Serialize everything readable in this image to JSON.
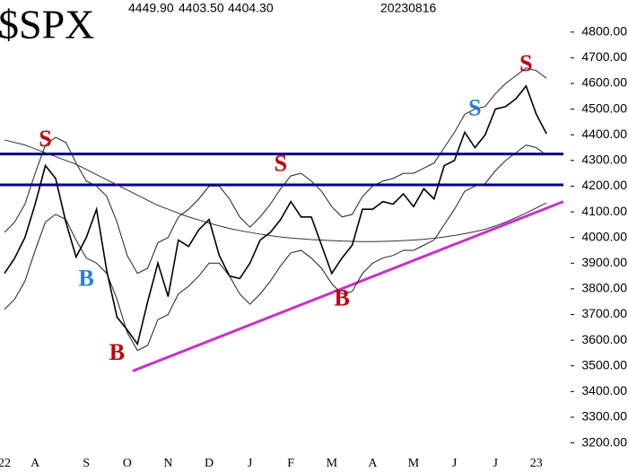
{
  "chart_data": {
    "type": "line",
    "title": "$SPX",
    "header": [
      "4449.90",
      "4403.50",
      "4404.30",
      "20230816"
    ],
    "categories": [
      "22",
      null,
      null,
      "A",
      null,
      null,
      null,
      null,
      "S",
      null,
      null,
      null,
      "O",
      null,
      null,
      null,
      "N",
      null,
      null,
      null,
      "D",
      null,
      null,
      null,
      "J",
      null,
      null,
      null,
      "F",
      null,
      null,
      null,
      "M",
      null,
      null,
      null,
      "A",
      null,
      null,
      null,
      "M",
      null,
      null,
      null,
      "J",
      null,
      null,
      null,
      "J",
      null,
      null,
      null,
      "23",
      null
    ],
    "series": [
      {
        "name": "price",
        "color": "#000000",
        "width": 1.6,
        "values": [
          3860,
          3920,
          4000,
          4130,
          4280,
          4230,
          4060,
          3924,
          4000,
          4110,
          3870,
          3690,
          3640,
          3585,
          3750,
          3900,
          3770,
          3990,
          3965,
          4030,
          4070,
          3930,
          3850,
          3840,
          3900,
          3990,
          4020,
          4070,
          4140,
          4080,
          4080,
          3970,
          3860,
          3920,
          3970,
          4110,
          4110,
          4140,
          4130,
          4170,
          4120,
          4190,
          4150,
          4280,
          4300,
          4410,
          4350,
          4400,
          4500,
          4510,
          4540,
          4590,
          4480,
          4404
        ]
      },
      {
        "name": "moving average",
        "color": "#333333",
        "width": 1,
        "values": [
          4380,
          4370,
          4360,
          4345,
          4330,
          4315,
          4300,
          4285,
          4265,
          4245,
          4225,
          4205,
          4185,
          4165,
          4145,
          4125,
          4110,
          4095,
          4080,
          4068,
          4056,
          4045,
          4035,
          4027,
          4020,
          4013,
          4007,
          4002,
          3998,
          3995,
          3992,
          3990,
          3988,
          3986,
          3985,
          3984,
          3984,
          3985,
          3986,
          3988,
          3990,
          3993,
          3997,
          4002,
          4008,
          4015,
          4023,
          4032,
          4045,
          4060,
          4077,
          4095,
          4115,
          4135
        ]
      },
      {
        "name": "upper band",
        "color": "#222222",
        "width": 1,
        "values": [
          4020,
          4060,
          4130,
          4250,
          4360,
          4390,
          4370,
          4290,
          4220,
          4200,
          4160,
          4060,
          3930,
          3860,
          3880,
          3980,
          4000,
          4080,
          4110,
          4150,
          4200,
          4200,
          4150,
          4080,
          4040,
          4080,
          4130,
          4190,
          4240,
          4250,
          4220,
          4180,
          4120,
          4080,
          4090,
          4160,
          4200,
          4220,
          4230,
          4250,
          4250,
          4270,
          4290,
          4350,
          4410,
          4480,
          4500,
          4510,
          4560,
          4600,
          4630,
          4660,
          4650,
          4620
        ]
      },
      {
        "name": "lower band",
        "color": "#222222",
        "width": 1,
        "values": [
          3720,
          3760,
          3830,
          3950,
          4060,
          4090,
          4070,
          3990,
          3920,
          3900,
          3860,
          3760,
          3630,
          3560,
          3580,
          3680,
          3700,
          3780,
          3810,
          3850,
          3900,
          3900,
          3850,
          3780,
          3740,
          3780,
          3830,
          3890,
          3940,
          3950,
          3920,
          3880,
          3820,
          3780,
          3790,
          3860,
          3900,
          3920,
          3930,
          3950,
          3950,
          3970,
          3990,
          4050,
          4110,
          4180,
          4200,
          4210,
          4260,
          4300,
          4330,
          4360,
          4350,
          4320
        ]
      }
    ],
    "levels": [
      4325,
      4205
    ],
    "level_color": "#00008b",
    "trendline": {
      "values": [
        3480,
        4140
      ],
      "color": "#c832c8"
    },
    "annotations": [
      {
        "text": "S",
        "color": "#c0000f",
        "index": 4,
        "value": 4377
      },
      {
        "text": "B",
        "color": "#2a7fd4",
        "index": 8,
        "value": 3832
      },
      {
        "text": "B",
        "color": "#c0000f",
        "index": 11,
        "value": 3545
      },
      {
        "text": "S",
        "color": "#c0000f",
        "index": 27,
        "value": 4280
      },
      {
        "text": "B",
        "color": "#c0000f",
        "index": 33,
        "value": 3755
      },
      {
        "text": "S",
        "color": "#2a7fd4",
        "index": 46,
        "value": 4496
      },
      {
        "text": "S",
        "color": "#c0000f",
        "index": 51,
        "value": 4670
      }
    ],
    "ylim": [
      3160,
      4925
    ],
    "yticks": [
      {
        "value": 3200,
        "label": "3200.00"
      },
      {
        "value": 3300,
        "label": "3300.00"
      },
      {
        "value": 3400,
        "label": "3400.00"
      },
      {
        "value": 3500,
        "label": "3500.00"
      },
      {
        "value": 3600,
        "label": "3600.00"
      },
      {
        "value": 3700,
        "label": "3700.00"
      },
      {
        "value": 3800,
        "label": "3800.00"
      },
      {
        "value": 3900,
        "label": "3900.00"
      },
      {
        "value": 4000,
        "label": "4000.00"
      },
      {
        "value": 4100,
        "label": "4100.00"
      },
      {
        "value": 4200,
        "label": "4200.00"
      },
      {
        "value": 4300,
        "label": "4300.00"
      },
      {
        "value": 4400,
        "label": "4400.00"
      },
      {
        "value": 4500,
        "label": "4500.00"
      },
      {
        "value": 4600,
        "label": "4600.00"
      },
      {
        "value": 4700,
        "label": "4700.00"
      },
      {
        "value": 4800,
        "label": "4800.00"
      }
    ]
  }
}
